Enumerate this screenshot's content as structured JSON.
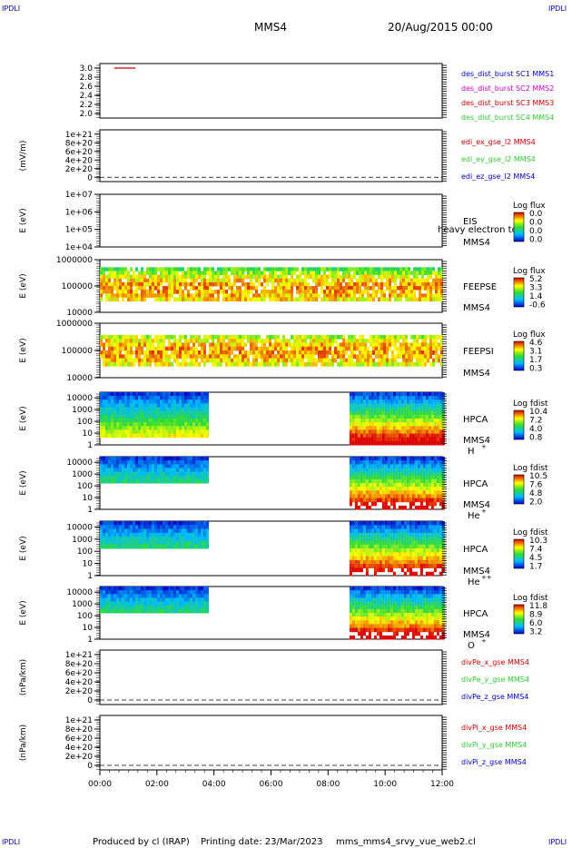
{
  "header": {
    "corner_label": "IPDLI",
    "spacecraft": "MMS4",
    "datetime": "20/Aug/2015 00:00"
  },
  "footer": {
    "produced_by": "Produced by cl (IRAP)",
    "printing_date": "Printing date: 23/Mar/2023",
    "script_name": "mms_mms4_srvy_vue_web2.cl"
  },
  "colors": {
    "red": "#cc0000",
    "magenta": "#cc00cc",
    "green": "#33cc33",
    "blue": "#0000cc",
    "dashed_zero": "#000000"
  },
  "chart_data": [
    {
      "id": "p1",
      "type": "line",
      "xlim": [
        "00:00",
        "12:00"
      ],
      "ylim": [
        1.9,
        3.1
      ],
      "yticks": [
        "3.0",
        "2.8",
        "2.6",
        "2.4",
        "2.2",
        "2.0"
      ],
      "ylabel": "",
      "series": [
        {
          "name": "des_dist_burst SC1 MMS1",
          "color": "#0000cc"
        },
        {
          "name": "des_dist_burst SC2 MMS2",
          "color": "#cc00cc"
        },
        {
          "name": "des_dist_burst SC3 MMS3",
          "color": "#cc0000",
          "x": [
            "00:30",
            "01:15"
          ],
          "y": [
            3.0,
            3.0
          ]
        },
        {
          "name": "des_dist_burst SC4 MMS4",
          "color": "#33cc33"
        }
      ]
    },
    {
      "id": "p2",
      "type": "line",
      "ylabel": "(mV/m)",
      "yticks": [
        "1e+21",
        "8e+20",
        "6e+20",
        "4e+20",
        "2e+20",
        "0"
      ],
      "ylim": [
        -1e+20,
        1.1e+21
      ],
      "series": [
        {
          "name": "edi_ex_gse_l2 MMS4",
          "color": "#cc0000"
        },
        {
          "name": "edi_ey_gse_l2 MMS4",
          "color": "#33cc33"
        },
        {
          "name": "edi_ez_gse_l2 MMS4",
          "color": "#0000cc"
        }
      ]
    },
    {
      "id": "p3",
      "type": "heatmap",
      "ylabel": "E (eV)",
      "yscale": "log",
      "yticks": [
        "1e+07",
        "1e+06",
        "1e+05",
        "1e+04"
      ],
      "ylim": [
        10000,
        10000000
      ],
      "instrument": "EIS",
      "species": "heavy electron to",
      "spacecraft": "MMS4",
      "colorbar_title": "Log flux",
      "colorbar_ticks": [
        "0.0",
        "0.0",
        "0.0",
        "0.0"
      ],
      "data": []
    },
    {
      "id": "p4",
      "type": "heatmap",
      "ylabel": "E (eV)",
      "yscale": "log",
      "yticks": [
        "1000000",
        "100000",
        "10000"
      ],
      "ylim": [
        10000,
        1000000
      ],
      "instrument": "FEEPSE",
      "spacecraft": "MMS4",
      "colorbar_title": "Log flux",
      "colorbar_ticks": [
        "5.2",
        "3.3",
        "1.4",
        "-0.6"
      ],
      "coverage": [
        "00:00",
        "12:00"
      ]
    },
    {
      "id": "p5",
      "type": "heatmap",
      "ylabel": "E (eV)",
      "yscale": "log",
      "yticks": [
        "1000000",
        "100000",
        "10000"
      ],
      "ylim": [
        10000,
        1000000
      ],
      "instrument": "FEEPSI",
      "spacecraft": "MMS4",
      "colorbar_title": "Log flux",
      "colorbar_ticks": [
        "4.6",
        "3.1",
        "1.7",
        "0.3"
      ],
      "coverage": [
        "00:00",
        "12:00"
      ]
    },
    {
      "id": "p6",
      "type": "heatmap",
      "ylabel": "E (eV)",
      "yscale": "log",
      "yticks": [
        "10000",
        "1000",
        "100",
        "10",
        "1"
      ],
      "ylim": [
        1,
        30000
      ],
      "instrument": "HPCA",
      "spacecraft": "MMS4",
      "species": "H",
      "species_charge": "+",
      "colorbar_title": "Log fdist",
      "colorbar_ticks": [
        "10.4",
        "7.2",
        "4.0",
        "0.8"
      ],
      "coverage": [
        [
          "00:00",
          "03:45"
        ],
        [
          "08:45",
          "12:00"
        ]
      ]
    },
    {
      "id": "p7",
      "type": "heatmap",
      "ylabel": "E (eV)",
      "yscale": "log",
      "yticks": [
        "10000",
        "1000",
        "100",
        "10",
        "1"
      ],
      "ylim": [
        1,
        30000
      ],
      "instrument": "HPCA",
      "spacecraft": "MMS4",
      "species": "He",
      "species_charge": "+",
      "colorbar_title": "Log fdist",
      "colorbar_ticks": [
        "10.5",
        "7.6",
        "4.8",
        "2.0"
      ],
      "coverage": [
        [
          "00:00",
          "03:45"
        ],
        [
          "08:45",
          "12:00"
        ]
      ]
    },
    {
      "id": "p8",
      "type": "heatmap",
      "ylabel": "E (eV)",
      "yscale": "log",
      "yticks": [
        "10000",
        "1000",
        "100",
        "10",
        "1"
      ],
      "ylim": [
        1,
        30000
      ],
      "instrument": "HPCA",
      "spacecraft": "MMS4",
      "species": "He",
      "species_charge": "++",
      "colorbar_title": "Log fdist",
      "colorbar_ticks": [
        "10.3",
        "7.4",
        "4.5",
        "1.7"
      ],
      "coverage": [
        [
          "00:00",
          "03:45"
        ],
        [
          "08:45",
          "12:00"
        ]
      ]
    },
    {
      "id": "p9",
      "type": "heatmap",
      "ylabel": "E (eV)",
      "yscale": "log",
      "yticks": [
        "10000",
        "1000",
        "100",
        "10",
        "1"
      ],
      "ylim": [
        1,
        30000
      ],
      "instrument": "HPCA",
      "spacecraft": "MMS4",
      "species": "O",
      "species_charge": "+",
      "colorbar_title": "Log fdist",
      "colorbar_ticks": [
        "11.8",
        "8.9",
        "6.0",
        "3.2"
      ],
      "coverage": [
        [
          "00:00",
          "03:45"
        ],
        [
          "08:45",
          "12:00"
        ]
      ]
    },
    {
      "id": "p10",
      "type": "line",
      "ylabel": "(nPa/km)",
      "yticks": [
        "1e+21",
        "8e+20",
        "6e+20",
        "4e+20",
        "2e+20",
        "0"
      ],
      "ylim": [
        -1e+20,
        1.1e+21
      ],
      "series": [
        {
          "name": "divPe_x_gse MMS4",
          "color": "#cc0000"
        },
        {
          "name": "divPe_y_gse MMS4",
          "color": "#33cc33"
        },
        {
          "name": "divPe_z_gse MMS4",
          "color": "#0000cc"
        }
      ]
    },
    {
      "id": "p11",
      "type": "line",
      "ylabel": "(nPa/km)",
      "yticks": [
        "1e+21",
        "8e+20",
        "6e+20",
        "4e+20",
        "2e+20",
        "0"
      ],
      "ylim": [
        -1e+20,
        1.1e+21
      ],
      "series": [
        {
          "name": "divPi_x_gse MMS4",
          "color": "#cc0000"
        },
        {
          "name": "divPi_y_gse MMS4",
          "color": "#33cc33"
        },
        {
          "name": "divPi_z_gse MMS4",
          "color": "#0000cc"
        }
      ]
    }
  ],
  "xaxis": {
    "ticks": [
      "00:00",
      "02:00",
      "04:00",
      "06:00",
      "08:00",
      "10:00",
      "12:00"
    ]
  }
}
